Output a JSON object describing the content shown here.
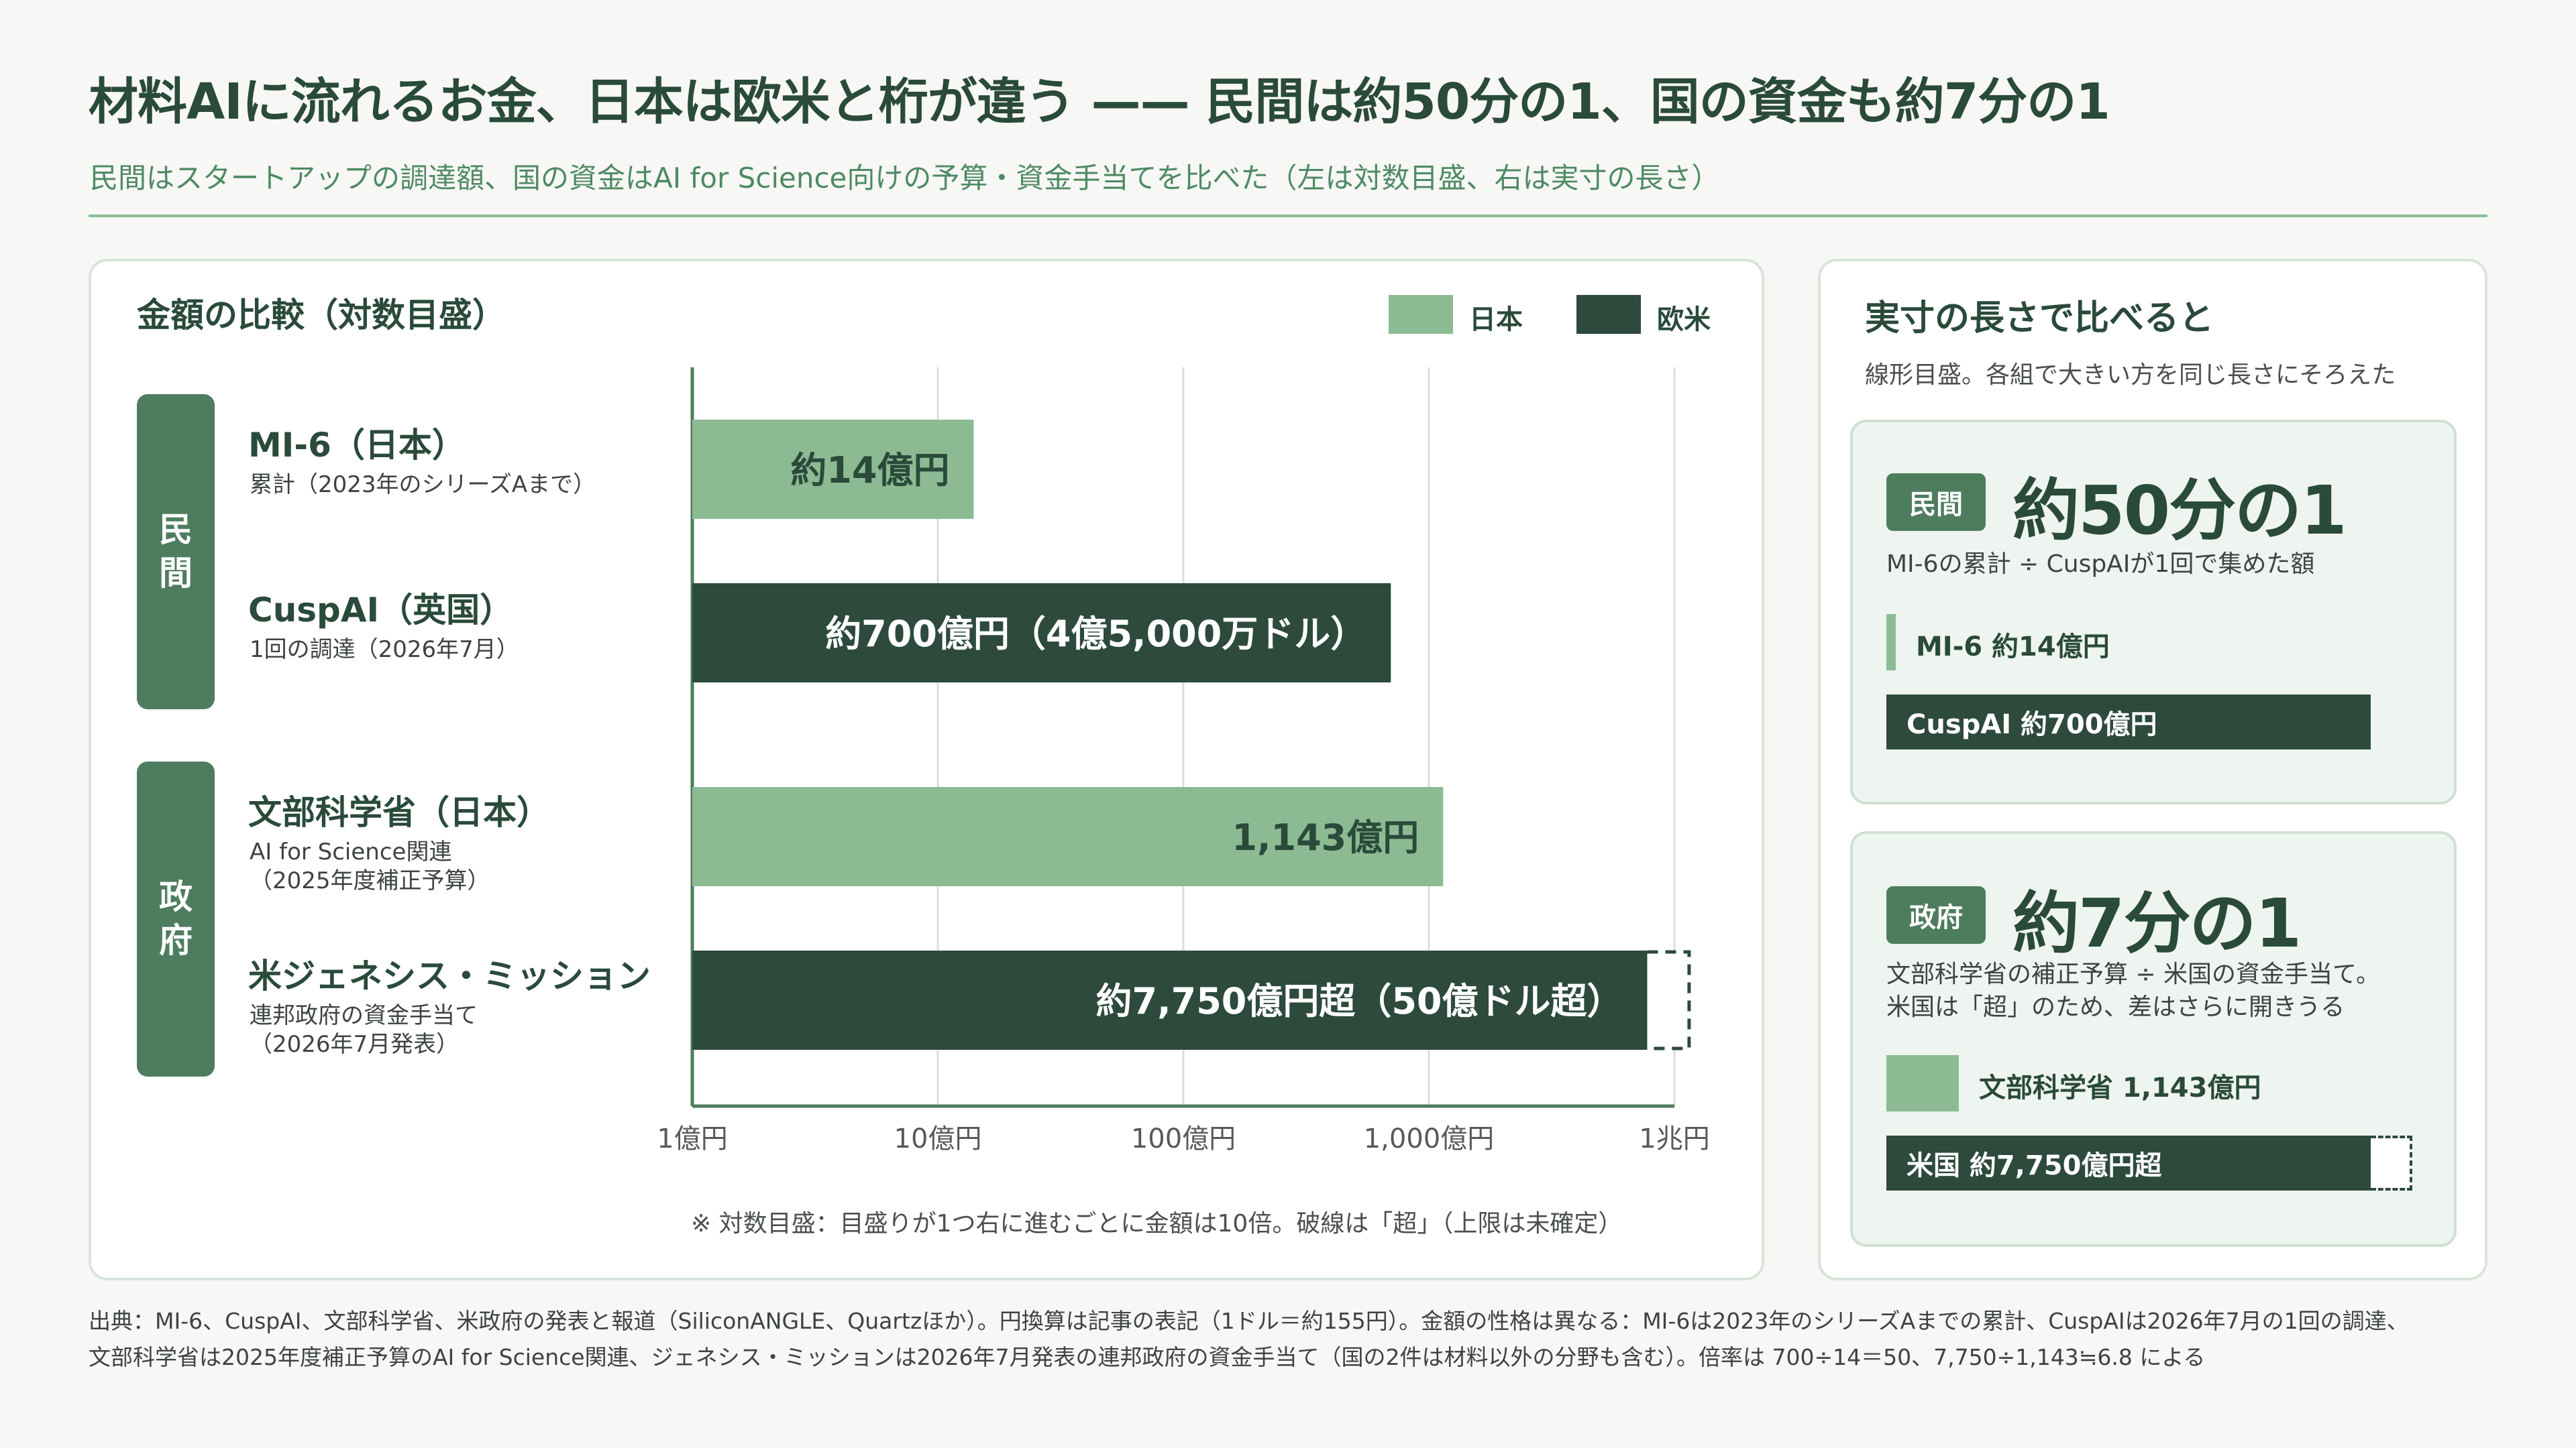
{
  "colors": {
    "japan": "#8cbb93",
    "west": "#2d4a3c",
    "accent": "#4e7d5e",
    "grid": "#dcdcdc",
    "axis": "#4e7d5e"
  },
  "title": "材料AIに流れるお金、日本は欧米と桁が違う —— 民間は約50分の1、国の資金も約7分の1",
  "subtitle": "民間はスタートアップの調達額、国の資金はAI for Science向けの予算・資金手当てを比べた（左は対数目盛、右は実寸の長さ）",
  "left_panel": {
    "title": "金額の比較（対数目盛）",
    "legend": [
      {
        "label": "日本"
      },
      {
        "label": "欧米"
      }
    ],
    "groups": [
      {
        "label": "民\n間"
      },
      {
        "label": "政\n府"
      }
    ],
    "rows": [
      {
        "name": "MI-6（日本）",
        "note": "累計（2023年のシリーズAまで）"
      },
      {
        "name": "CuspAI（英国）",
        "note": "1回の調達（2026年7月）"
      },
      {
        "name": "文部科学省（日本）",
        "note": "AI for Science関連\n（2025年度補正予算）"
      },
      {
        "name": "米ジェネシス・ミッション",
        "note": "連邦政府の資金手当て\n（2026年7月発表）"
      }
    ],
    "footnote": "※ 対数目盛：目盛りが1つ右に進むごとに金額は10倍。破線は「超」（上限は未確定）"
  },
  "chart_data": {
    "type": "bar",
    "orientation": "horizontal",
    "scale": "log",
    "unit": "億円",
    "xlim": [
      1,
      10000
    ],
    "ticks": [
      {
        "value": 1,
        "label": "1億円"
      },
      {
        "value": 10,
        "label": "10億円"
      },
      {
        "value": 100,
        "label": "100億円"
      },
      {
        "value": 1000,
        "label": "1,000億円"
      },
      {
        "value": 10000,
        "label": "1兆円"
      }
    ],
    "legend_placement": "top-right",
    "grid": true,
    "bars": [
      {
        "category": "MI-6（日本）",
        "region": "日本",
        "value": 14,
        "label": "約14億円",
        "open_ended": false
      },
      {
        "category": "CuspAI（英国）",
        "region": "欧米",
        "value": 700,
        "label": "約700億円（4億5,000万ドル）",
        "open_ended": false
      },
      {
        "category": "文部科学省（日本）",
        "region": "日本",
        "value": 1143,
        "label": "1,143億円",
        "open_ended": false
      },
      {
        "category": "米ジェネシス・ミッション",
        "region": "欧米",
        "value": 7750,
        "label": "約7,750億円超（50億ドル超）",
        "open_ended": true
      }
    ]
  },
  "right_panel": {
    "title": "実寸の長さで比べると",
    "note": "線形目盛。各組で大きい方を同じ長さにそろえた",
    "cards": [
      {
        "tag": "民間",
        "ratio": "約50分の1",
        "desc": "MI-6の累計 ÷ CuspAIが1回で集めた額",
        "bar_small": {
          "label": "MI-6 約14億円",
          "value": 14
        },
        "bar_large": {
          "label": "CuspAI 約700億円",
          "value": 700
        }
      },
      {
        "tag": "政府",
        "ratio": "約7分の1",
        "desc": "文部科学省の補正予算 ÷ 米国の資金手当て。\n米国は「超」のため、差はさらに開きうる",
        "bar_small": {
          "label": "文部科学省 1,143億円",
          "value": 1143
        },
        "bar_large": {
          "label": "米国 約7,750億円超",
          "value": 7750
        }
      }
    ]
  },
  "source": "出典：MI-6、CuspAI、文部科学省、米政府の発表と報道（SiliconANGLE、Quartzほか）。円換算は記事の表記（1ドル＝約155円）。金額の性格は異なる：MI-6は2023年のシリーズAまでの累計、CuspAIは2026年7月の1回の調達、\n文部科学省は2025年度補正予算のAI for Science関連、ジェネシス・ミッションは2026年7月発表の連邦政府の資金手当て（国の2件は材料以外の分野も含む）。倍率は 700÷14＝50、7,750÷1,143≒6.8 による"
}
